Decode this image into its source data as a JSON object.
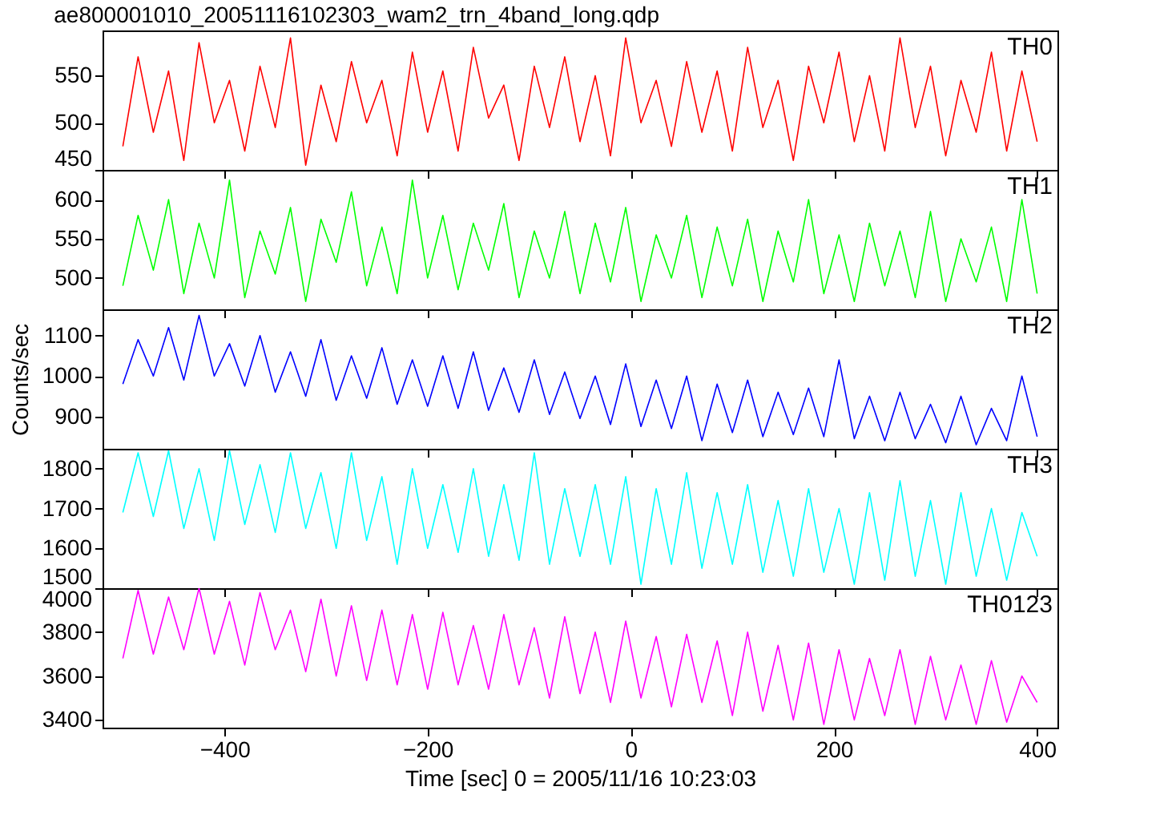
{
  "chart_data": [
    {
      "type": "line",
      "title": "ae800001010_20051116102303_wam2_trn_4band_long.qdp",
      "xlim": [
        -520,
        420
      ],
      "xticks": [
        -400,
        -200,
        0,
        200,
        400
      ],
      "ylim": [
        450,
        598
      ],
      "yticks": [
        450,
        500,
        550
      ],
      "tick_labels": "y",
      "x": [
        -500,
        -485,
        -470,
        -455,
        -440,
        -425,
        -410,
        -395,
        -380,
        -365,
        -350,
        -335,
        -320,
        -305,
        -290,
        -275,
        -260,
        -245,
        -230,
        -215,
        -200,
        -185,
        -170,
        -155,
        -140,
        -125,
        -110,
        -95,
        -80,
        -65,
        -50,
        -35,
        -20,
        -5,
        10,
        25,
        40,
        55,
        70,
        85,
        100,
        115,
        130,
        145,
        160,
        175,
        190,
        205,
        220,
        235,
        250,
        265,
        280,
        295,
        310,
        325,
        340,
        355,
        370,
        385,
        400
      ],
      "series": [
        {
          "name": "TH0",
          "color": "#ff0000",
          "values": [
            475,
            570,
            490,
            555,
            460,
            585,
            500,
            545,
            470,
            560,
            495,
            590,
            455,
            540,
            480,
            565,
            500,
            545,
            465,
            575,
            490,
            555,
            470,
            580,
            505,
            540,
            460,
            560,
            495,
            570,
            480,
            550,
            465,
            590,
            500,
            545,
            475,
            565,
            490,
            555,
            470,
            580,
            495,
            545,
            460,
            560,
            500,
            575,
            480,
            550,
            470,
            590,
            495,
            560,
            465,
            545,
            490,
            575,
            470,
            555,
            480
          ]
        }
      ]
    },
    {
      "type": "line",
      "xlim": [
        -520,
        420
      ],
      "xticks": [
        -400,
        -200,
        0,
        200,
        400
      ],
      "ylim": [
        460,
        638
      ],
      "yticks": [
        500,
        550,
        600
      ],
      "tick_labels": "y",
      "x": [
        -500,
        -485,
        -470,
        -455,
        -440,
        -425,
        -410,
        -395,
        -380,
        -365,
        -350,
        -335,
        -320,
        -305,
        -290,
        -275,
        -260,
        -245,
        -230,
        -215,
        -200,
        -185,
        -170,
        -155,
        -140,
        -125,
        -110,
        -95,
        -80,
        -65,
        -50,
        -35,
        -20,
        -5,
        10,
        25,
        40,
        55,
        70,
        85,
        100,
        115,
        130,
        145,
        160,
        175,
        190,
        205,
        220,
        235,
        250,
        265,
        280,
        295,
        310,
        325,
        340,
        355,
        370,
        385,
        400
      ],
      "series": [
        {
          "name": "TH1",
          "color": "#00ff00",
          "values": [
            490,
            580,
            510,
            600,
            480,
            570,
            500,
            625,
            475,
            560,
            505,
            590,
            470,
            575,
            520,
            610,
            490,
            565,
            480,
            625,
            500,
            580,
            485,
            570,
            510,
            595,
            475,
            560,
            500,
            585,
            480,
            570,
            495,
            590,
            470,
            555,
            500,
            580,
            475,
            565,
            490,
            575,
            470,
            560,
            495,
            600,
            480,
            555,
            470,
            570,
            490,
            560,
            475,
            585,
            470,
            550,
            495,
            565,
            470,
            600,
            480
          ]
        }
      ]
    },
    {
      "type": "line",
      "ylabel": "Counts/sec",
      "xlim": [
        -520,
        420
      ],
      "xticks": [
        -400,
        -200,
        0,
        200,
        400
      ],
      "ylim": [
        820,
        1165
      ],
      "yticks": [
        900,
        1000,
        1100
      ],
      "tick_labels": "y",
      "x": [
        -500,
        -485,
        -470,
        -455,
        -440,
        -425,
        -410,
        -395,
        -380,
        -365,
        -350,
        -335,
        -320,
        -305,
        -290,
        -275,
        -260,
        -245,
        -230,
        -215,
        -200,
        -185,
        -170,
        -155,
        -140,
        -125,
        -110,
        -95,
        -80,
        -65,
        -50,
        -35,
        -20,
        -5,
        10,
        25,
        40,
        55,
        70,
        85,
        100,
        115,
        130,
        145,
        160,
        175,
        190,
        205,
        220,
        235,
        250,
        265,
        280,
        295,
        310,
        325,
        340,
        355,
        370,
        385,
        400
      ],
      "series": [
        {
          "name": "TH2",
          "color": "#0000ff",
          "values": [
            980,
            1090,
            1000,
            1120,
            990,
            1150,
            1000,
            1080,
            975,
            1100,
            960,
            1060,
            950,
            1090,
            940,
            1050,
            945,
            1070,
            930,
            1040,
            925,
            1050,
            920,
            1060,
            915,
            1020,
            910,
            1040,
            905,
            1010,
            895,
            1000,
            880,
            1030,
            875,
            990,
            870,
            1000,
            840,
            980,
            860,
            990,
            850,
            960,
            855,
            970,
            850,
            1040,
            845,
            950,
            840,
            960,
            845,
            930,
            835,
            950,
            830,
            920,
            840,
            1000,
            850
          ]
        }
      ]
    },
    {
      "type": "line",
      "xlim": [
        -520,
        420
      ],
      "xticks": [
        -400,
        -200,
        0,
        200,
        400
      ],
      "ylim": [
        1500,
        1850
      ],
      "yticks": [
        1500,
        1600,
        1700,
        1800
      ],
      "tick_labels": "y",
      "x": [
        -500,
        -485,
        -470,
        -455,
        -440,
        -425,
        -410,
        -395,
        -380,
        -365,
        -350,
        -335,
        -320,
        -305,
        -290,
        -275,
        -260,
        -245,
        -230,
        -215,
        -200,
        -185,
        -170,
        -155,
        -140,
        -125,
        -110,
        -95,
        -80,
        -65,
        -50,
        -35,
        -20,
        -5,
        10,
        25,
        40,
        55,
        70,
        85,
        100,
        115,
        130,
        145,
        160,
        175,
        190,
        205,
        220,
        235,
        250,
        265,
        280,
        295,
        310,
        325,
        340,
        355,
        370,
        385,
        400
      ],
      "series": [
        {
          "name": "TH3",
          "color": "#00ffff",
          "values": [
            1690,
            1840,
            1680,
            1845,
            1650,
            1800,
            1620,
            1845,
            1660,
            1810,
            1640,
            1840,
            1650,
            1790,
            1600,
            1840,
            1620,
            1780,
            1560,
            1800,
            1600,
            1760,
            1590,
            1800,
            1580,
            1760,
            1570,
            1840,
            1560,
            1750,
            1580,
            1760,
            1560,
            1780,
            1510,
            1750,
            1560,
            1790,
            1550,
            1740,
            1560,
            1760,
            1540,
            1720,
            1530,
            1750,
            1540,
            1700,
            1510,
            1740,
            1520,
            1770,
            1530,
            1720,
            1510,
            1740,
            1530,
            1700,
            1520,
            1690,
            1580
          ]
        }
      ]
    },
    {
      "type": "line",
      "xlabel": "Time [sec] 0 = 2005/11/16 10:23:03",
      "xlim": [
        -520,
        420
      ],
      "xticks": [
        -400,
        -200,
        0,
        200,
        400
      ],
      "ylim": [
        3365,
        4000
      ],
      "yticks": [
        3400,
        3600,
        3800,
        4000
      ],
      "x": [
        -500,
        -485,
        -470,
        -455,
        -440,
        -425,
        -410,
        -395,
        -380,
        -365,
        -350,
        -335,
        -320,
        -305,
        -290,
        -275,
        -260,
        -245,
        -230,
        -215,
        -200,
        -185,
        -170,
        -155,
        -140,
        -125,
        -110,
        -95,
        -80,
        -65,
        -50,
        -35,
        -20,
        -5,
        10,
        25,
        40,
        55,
        70,
        85,
        100,
        115,
        130,
        145,
        160,
        175,
        190,
        205,
        220,
        235,
        250,
        265,
        280,
        295,
        310,
        325,
        340,
        355,
        370,
        385,
        400
      ],
      "series": [
        {
          "name": "TH0123",
          "color": "#ff00ff",
          "values": [
            3680,
            3990,
            3700,
            3960,
            3720,
            4000,
            3700,
            3940,
            3650,
            3980,
            3720,
            3900,
            3620,
            3950,
            3600,
            3920,
            3580,
            3900,
            3560,
            3880,
            3540,
            3890,
            3560,
            3830,
            3540,
            3880,
            3560,
            3820,
            3500,
            3870,
            3520,
            3800,
            3480,
            3850,
            3500,
            3780,
            3460,
            3790,
            3480,
            3760,
            3420,
            3800,
            3440,
            3740,
            3400,
            3750,
            3380,
            3720,
            3400,
            3680,
            3420,
            3720,
            3380,
            3690,
            3400,
            3650,
            3380,
            3670,
            3390,
            3600,
            3480
          ]
        }
      ]
    }
  ]
}
